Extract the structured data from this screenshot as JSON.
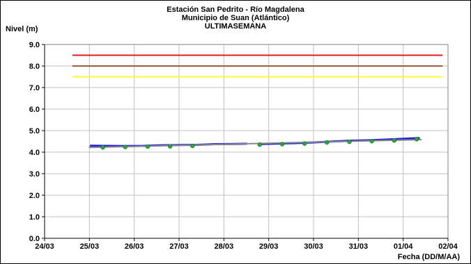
{
  "chart_data": {
    "type": "line",
    "title": "Estación San Pedrito - Río Magdalena",
    "subtitle": "Municipio de Suan (Atlántico)",
    "subtitle2": "ULTIMASEMANA",
    "ylabel": "Nivel (m)",
    "xlabel": "Fecha (DD/M/AA)",
    "ylim": [
      0,
      9
    ],
    "yticks": [
      0,
      1,
      2,
      3,
      4,
      5,
      6,
      7,
      8,
      9
    ],
    "ytick_labels": [
      "0.0",
      "1.0",
      "2.0",
      "3.0",
      "4.0",
      "5.0",
      "6.0",
      "7.0",
      "8.0",
      "9.0"
    ],
    "xlim": [
      0,
      9
    ],
    "xtick_labels": [
      "24/03",
      "25/03",
      "26/03",
      "27/03",
      "28/03",
      "29/03",
      "30/03",
      "31/03",
      "01/04",
      "02/04"
    ],
    "grid": true,
    "thresholds": [
      {
        "value": 8.5,
        "color": "#e41a1a",
        "x_range": [
          0.62,
          8.88
        ]
      },
      {
        "value": 8.0,
        "color": "#9b5a3c",
        "x_range": [
          0.62,
          8.88
        ]
      },
      {
        "value": 7.5,
        "color": "#ffff33",
        "x_range": [
          0.62,
          8.88
        ]
      }
    ],
    "series": [
      {
        "color": "#1f1fe6",
        "segments": [
          {
            "x": [
              1.03,
              1.4,
              1.8,
              2.2,
              2.6,
              3.0,
              3.4,
              3.8,
              4.2,
              4.5
            ],
            "y": [
              4.3,
              4.29,
              4.28,
              4.29,
              4.32,
              4.33,
              4.34,
              4.37,
              4.38,
              4.39
            ]
          },
          {
            "x": [
              4.85,
              5.2,
              5.6,
              6.0,
              6.4,
              6.8,
              7.2,
              7.6,
              8.0,
              8.35
            ],
            "y": [
              4.38,
              4.4,
              4.42,
              4.45,
              4.49,
              4.53,
              4.55,
              4.58,
              4.62,
              4.65
            ]
          }
        ]
      },
      {
        "color": "#888888",
        "segments": [
          {
            "x": [
              1.0,
              8.4
            ],
            "y": [
              4.22,
              4.58
            ]
          }
        ]
      },
      {
        "color": "#2ea043",
        "markers": true,
        "x": [
          1.3,
          1.8,
          2.3,
          2.8,
          3.3,
          4.8,
          5.3,
          5.8,
          6.3,
          6.8,
          7.3,
          7.8,
          8.3
        ],
        "y": [
          4.22,
          4.24,
          4.26,
          4.27,
          4.29,
          4.35,
          4.37,
          4.4,
          4.45,
          4.48,
          4.51,
          4.54,
          4.6
        ]
      }
    ]
  }
}
